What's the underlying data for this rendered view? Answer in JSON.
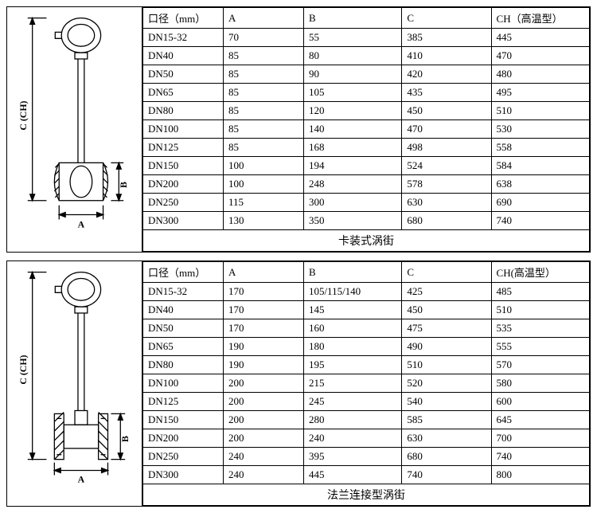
{
  "colors": {
    "stroke": "#000000",
    "hatch": "#000000",
    "bg": "#ffffff"
  },
  "labels": {
    "c_ch": "C (CH)",
    "a": "A",
    "b": "B"
  },
  "table1": {
    "headers": [
      "口径（mm）",
      "A",
      "B",
      "C",
      "CH（高温型）"
    ],
    "rows": [
      [
        "DN15-32",
        "70",
        "55",
        "385",
        "445"
      ],
      [
        "DN40",
        "85",
        "80",
        "410",
        "470"
      ],
      [
        "DN50",
        "85",
        "90",
        "420",
        "480"
      ],
      [
        "DN65",
        "85",
        "105",
        "435",
        "495"
      ],
      [
        "DN80",
        "85",
        "120",
        "450",
        "510"
      ],
      [
        "DN100",
        "85",
        "140",
        "470",
        "530"
      ],
      [
        "DN125",
        "85",
        "168",
        "498",
        "558"
      ],
      [
        "DN150",
        "100",
        "194",
        "524",
        "584"
      ],
      [
        "DN200",
        "100",
        "248",
        "578",
        "638"
      ],
      [
        "DN250",
        "115",
        "300",
        "630",
        "690"
      ],
      [
        "DN300",
        "130",
        "350",
        "680",
        "740"
      ]
    ],
    "caption": "卡装式涡街"
  },
  "table2": {
    "headers": [
      "口径（mm）",
      "A",
      "B",
      "C",
      "CH(高温型）"
    ],
    "rows": [
      [
        "DN15-32",
        "170",
        "105/115/140",
        "425",
        "485"
      ],
      [
        "DN40",
        "170",
        "145",
        "450",
        "510"
      ],
      [
        "DN50",
        "170",
        "160",
        "475",
        "535"
      ],
      [
        "DN65",
        "190",
        "180",
        "490",
        "555"
      ],
      [
        "DN80",
        "190",
        "195",
        "510",
        "570"
      ],
      [
        "DN100",
        "200",
        "215",
        "520",
        "580"
      ],
      [
        "DN125",
        "200",
        "245",
        "540",
        "600"
      ],
      [
        "DN150",
        "200",
        "280",
        "585",
        "645"
      ],
      [
        "DN200",
        "200",
        "240",
        "630",
        "700"
      ],
      [
        "DN250",
        "240",
        "395",
        "680",
        "740"
      ],
      [
        "DN300",
        "240",
        "445",
        "740",
        "800"
      ]
    ],
    "caption": "法兰连接型涡街"
  },
  "diagram1": {
    "type": "wafer"
  },
  "diagram2": {
    "type": "flange"
  }
}
